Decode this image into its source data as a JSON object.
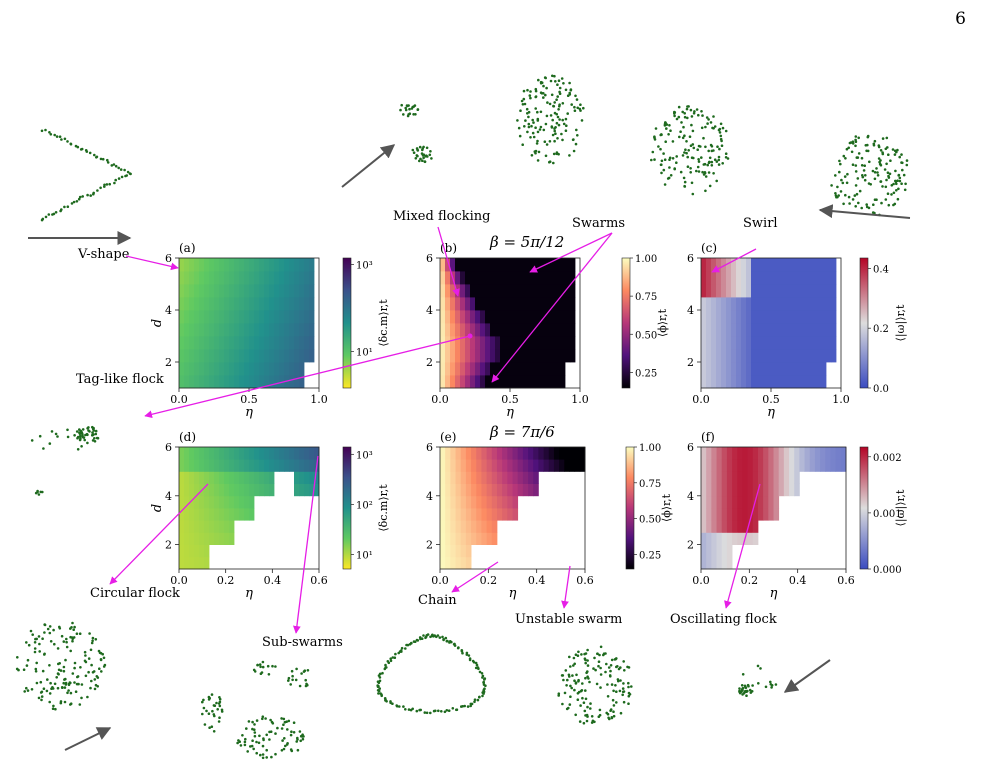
{
  "page_number": "6",
  "colors": {
    "annotation": "#e61ee6",
    "arrow": "#555555",
    "agents": "#1e6a1e",
    "missing": "#ffffff"
  },
  "beta_labels": {
    "top": "β = 5π/12",
    "bottom": "β = 7π/6"
  },
  "annotations": {
    "v_shape": "V-shape",
    "mixed_flocking": "Mixed flocking",
    "swarms": "Swarms",
    "swirl": "Swirl",
    "tag_like_flock": "Tag-like flock",
    "circular_flock": "Circular flock",
    "sub_swarms": "Sub-swarms",
    "chain": "Chain",
    "unstable_swarm": "Unstable swarm",
    "oscillating_flock": "Oscillating flock"
  },
  "chart_data": [
    {
      "id": "a",
      "panel_label": "(a)",
      "type": "heatmap",
      "xlabel": "η",
      "ylabel": "d",
      "xlim": [
        0,
        1.0
      ],
      "ylim": [
        1,
        6
      ],
      "xticks": [
        "0.0",
        "0.5",
        "1.0"
      ],
      "yticks": [
        "2",
        "4",
        "6"
      ],
      "colormap": "viridis_r",
      "colorbar_label": "⟨δc.m⟩r,t",
      "colorbar_scale": "log",
      "colorbar_ticks": [
        "10¹",
        "10³"
      ],
      "rows": [
        {
          "d_range": [
            1,
            2
          ],
          "eta_max": 0.9,
          "description": "teal ~10¹-10²"
        },
        {
          "d_range": [
            2,
            3
          ],
          "eta_max": 0.97,
          "description": "green"
        },
        {
          "d_range": [
            3,
            4
          ],
          "eta_max": 0.97,
          "description": "green-yellow"
        },
        {
          "d_range": [
            4,
            5
          ],
          "eta_max": 0.97,
          "description": "yellow-green"
        },
        {
          "d_range": [
            5,
            6
          ],
          "eta_max": 0.97,
          "description": "yellow (~10¹) at low η"
        }
      ]
    },
    {
      "id": "b",
      "panel_label": "(b)",
      "type": "heatmap",
      "xlabel": "η",
      "ylabel": "",
      "xlim": [
        0,
        1.0
      ],
      "ylim": [
        1,
        6
      ],
      "xticks": [
        "0.0",
        "0.5",
        "1.0"
      ],
      "yticks": [
        "2",
        "4",
        "6"
      ],
      "colormap": "magma",
      "colorbar_label": "⟨ϕ⟩r,t",
      "colorbar_ticks": [
        "0.25",
        "0.50",
        "0.75",
        "1.00"
      ],
      "description": "ordered (ϕ≈1) only at low η, disordered (ϕ≈0) elsewhere"
    },
    {
      "id": "c",
      "panel_label": "(c)",
      "type": "heatmap",
      "xlabel": "η",
      "ylabel": "",
      "xlim": [
        0,
        1.0
      ],
      "ylim": [
        1,
        6
      ],
      "xticks": [
        "0.0",
        "0.5",
        "1.0"
      ],
      "yticks": [
        "2",
        "4",
        "6"
      ],
      "colormap": "coolwarm",
      "colorbar_label": "⟨|ω|⟩r,t",
      "colorbar_ticks": [
        "0.0",
        "0.2",
        "0.4"
      ],
      "description": "high rotation near d=5-6, η<0.2"
    },
    {
      "id": "d",
      "panel_label": "(d)",
      "type": "heatmap",
      "xlabel": "η",
      "ylabel": "d",
      "xlim": [
        0,
        0.6
      ],
      "ylim": [
        1,
        6
      ],
      "xticks": [
        "0.0",
        "0.2",
        "0.4",
        "0.6"
      ],
      "yticks": [
        "2",
        "4",
        "6"
      ],
      "colormap": "viridis_r",
      "colorbar_label": "⟨δc.m⟩r,t",
      "colorbar_scale": "log",
      "colorbar_ticks": [
        "10¹",
        "10²",
        "10³"
      ]
    },
    {
      "id": "e",
      "panel_label": "(e)",
      "type": "heatmap",
      "xlabel": "η",
      "ylabel": "",
      "xlim": [
        0,
        0.6
      ],
      "ylim": [
        1,
        6
      ],
      "xticks": [
        "0.0",
        "0.2",
        "0.4",
        "0.6"
      ],
      "yticks": [
        "2",
        "4",
        "6"
      ],
      "colormap": "magma",
      "colorbar_label": "⟨ϕ⟩r,t",
      "colorbar_ticks": [
        "0.25",
        "0.50",
        "0.75",
        "1.00"
      ]
    },
    {
      "id": "f",
      "panel_label": "(f)",
      "type": "heatmap",
      "xlabel": "η",
      "ylabel": "",
      "xlim": [
        0,
        0.6
      ],
      "ylim": [
        1,
        6
      ],
      "xticks": [
        "0.0",
        "0.2",
        "0.4",
        "0.6"
      ],
      "yticks": [
        "2",
        "4",
        "6"
      ],
      "colormap": "coolwarm",
      "colorbar_label": "⟨|ω|⟩r,t",
      "colorbar_ticks": [
        "0.000",
        "0.001",
        "0.002"
      ]
    }
  ]
}
